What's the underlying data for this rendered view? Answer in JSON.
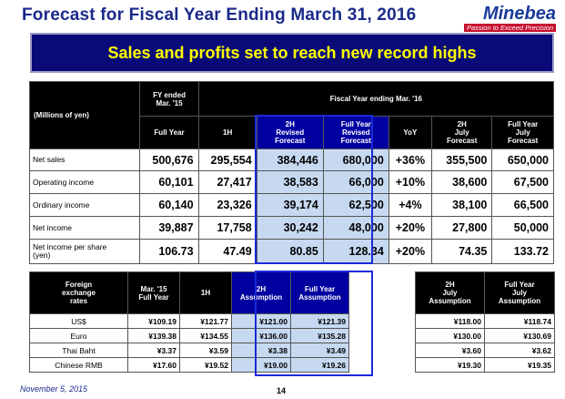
{
  "title": "Forecast for Fiscal Year Ending March 31, 2016",
  "logo": {
    "name": "Minebea",
    "tagline": "Passion to Exceed Precision"
  },
  "banner": "Sales and profits set to reach new record highs",
  "main_table": {
    "unit_label": "(Millions of yen)",
    "fy15_header": "FY ended\nMar. '15",
    "fy16_header": "Fiscal Year ending Mar. '16",
    "columns": [
      "Full Year",
      "1H",
      "2H\nRevised\nForecast",
      "Full Year\nRevised\nForecast",
      "YoY",
      "2H\nJuly\nForecast",
      "Full Year\nJuly\nForecast"
    ],
    "rows": [
      {
        "label": "Net sales",
        "values": [
          "500,676",
          "295,554",
          "384,446",
          "680,000",
          "+36%",
          "355,500",
          "650,000"
        ]
      },
      {
        "label": "Operating income",
        "values": [
          "60,101",
          "27,417",
          "38,583",
          "66,000",
          "+10%",
          "38,600",
          "67,500"
        ]
      },
      {
        "label": "Ordinary income",
        "values": [
          "60,140",
          "23,326",
          "39,174",
          "62,500",
          "+4%",
          "38,100",
          "66,500"
        ]
      },
      {
        "label": "Net income",
        "values": [
          "39,887",
          "17,758",
          "30,242",
          "48,000",
          "+20%",
          "27,800",
          "50,000"
        ]
      },
      {
        "label": "Net income per share\n(yen)",
        "values": [
          "106.73",
          "47.49",
          "80.85",
          "128.34",
          "+20%",
          "74.35",
          "133.72"
        ]
      }
    ]
  },
  "fx_table": {
    "header_label": "Foreign\nexchange\nrates",
    "columns": [
      "Mar. '15\nFull Year",
      "1H",
      "2H\nAssumption",
      "Full Year\nAssumption"
    ],
    "right_columns": [
      "2H\nJuly\nAssumption",
      "Full Year\nJuly\nAssumption"
    ],
    "rows": [
      {
        "label": "US$",
        "values": [
          "¥109.19",
          "¥121.77",
          "¥121.00",
          "¥121.39"
        ],
        "right": [
          "¥118.00",
          "¥118.74"
        ]
      },
      {
        "label": "Euro",
        "values": [
          "¥139.38",
          "¥134.55",
          "¥136.00",
          "¥135.28"
        ],
        "right": [
          "¥130.00",
          "¥130.69"
        ]
      },
      {
        "label": "Thai Baht",
        "values": [
          "¥3.37",
          "¥3.59",
          "¥3.38",
          "¥3.49"
        ],
        "right": [
          "¥3.60",
          "¥3.62"
        ]
      },
      {
        "label": "Chinese RMB",
        "values": [
          "¥17.60",
          "¥19.52",
          "¥19.00",
          "¥19.26"
        ],
        "right": [
          "¥19.30",
          "¥19.35"
        ]
      }
    ]
  },
  "footer": {
    "date": "November 5, 2015",
    "page": "14"
  }
}
